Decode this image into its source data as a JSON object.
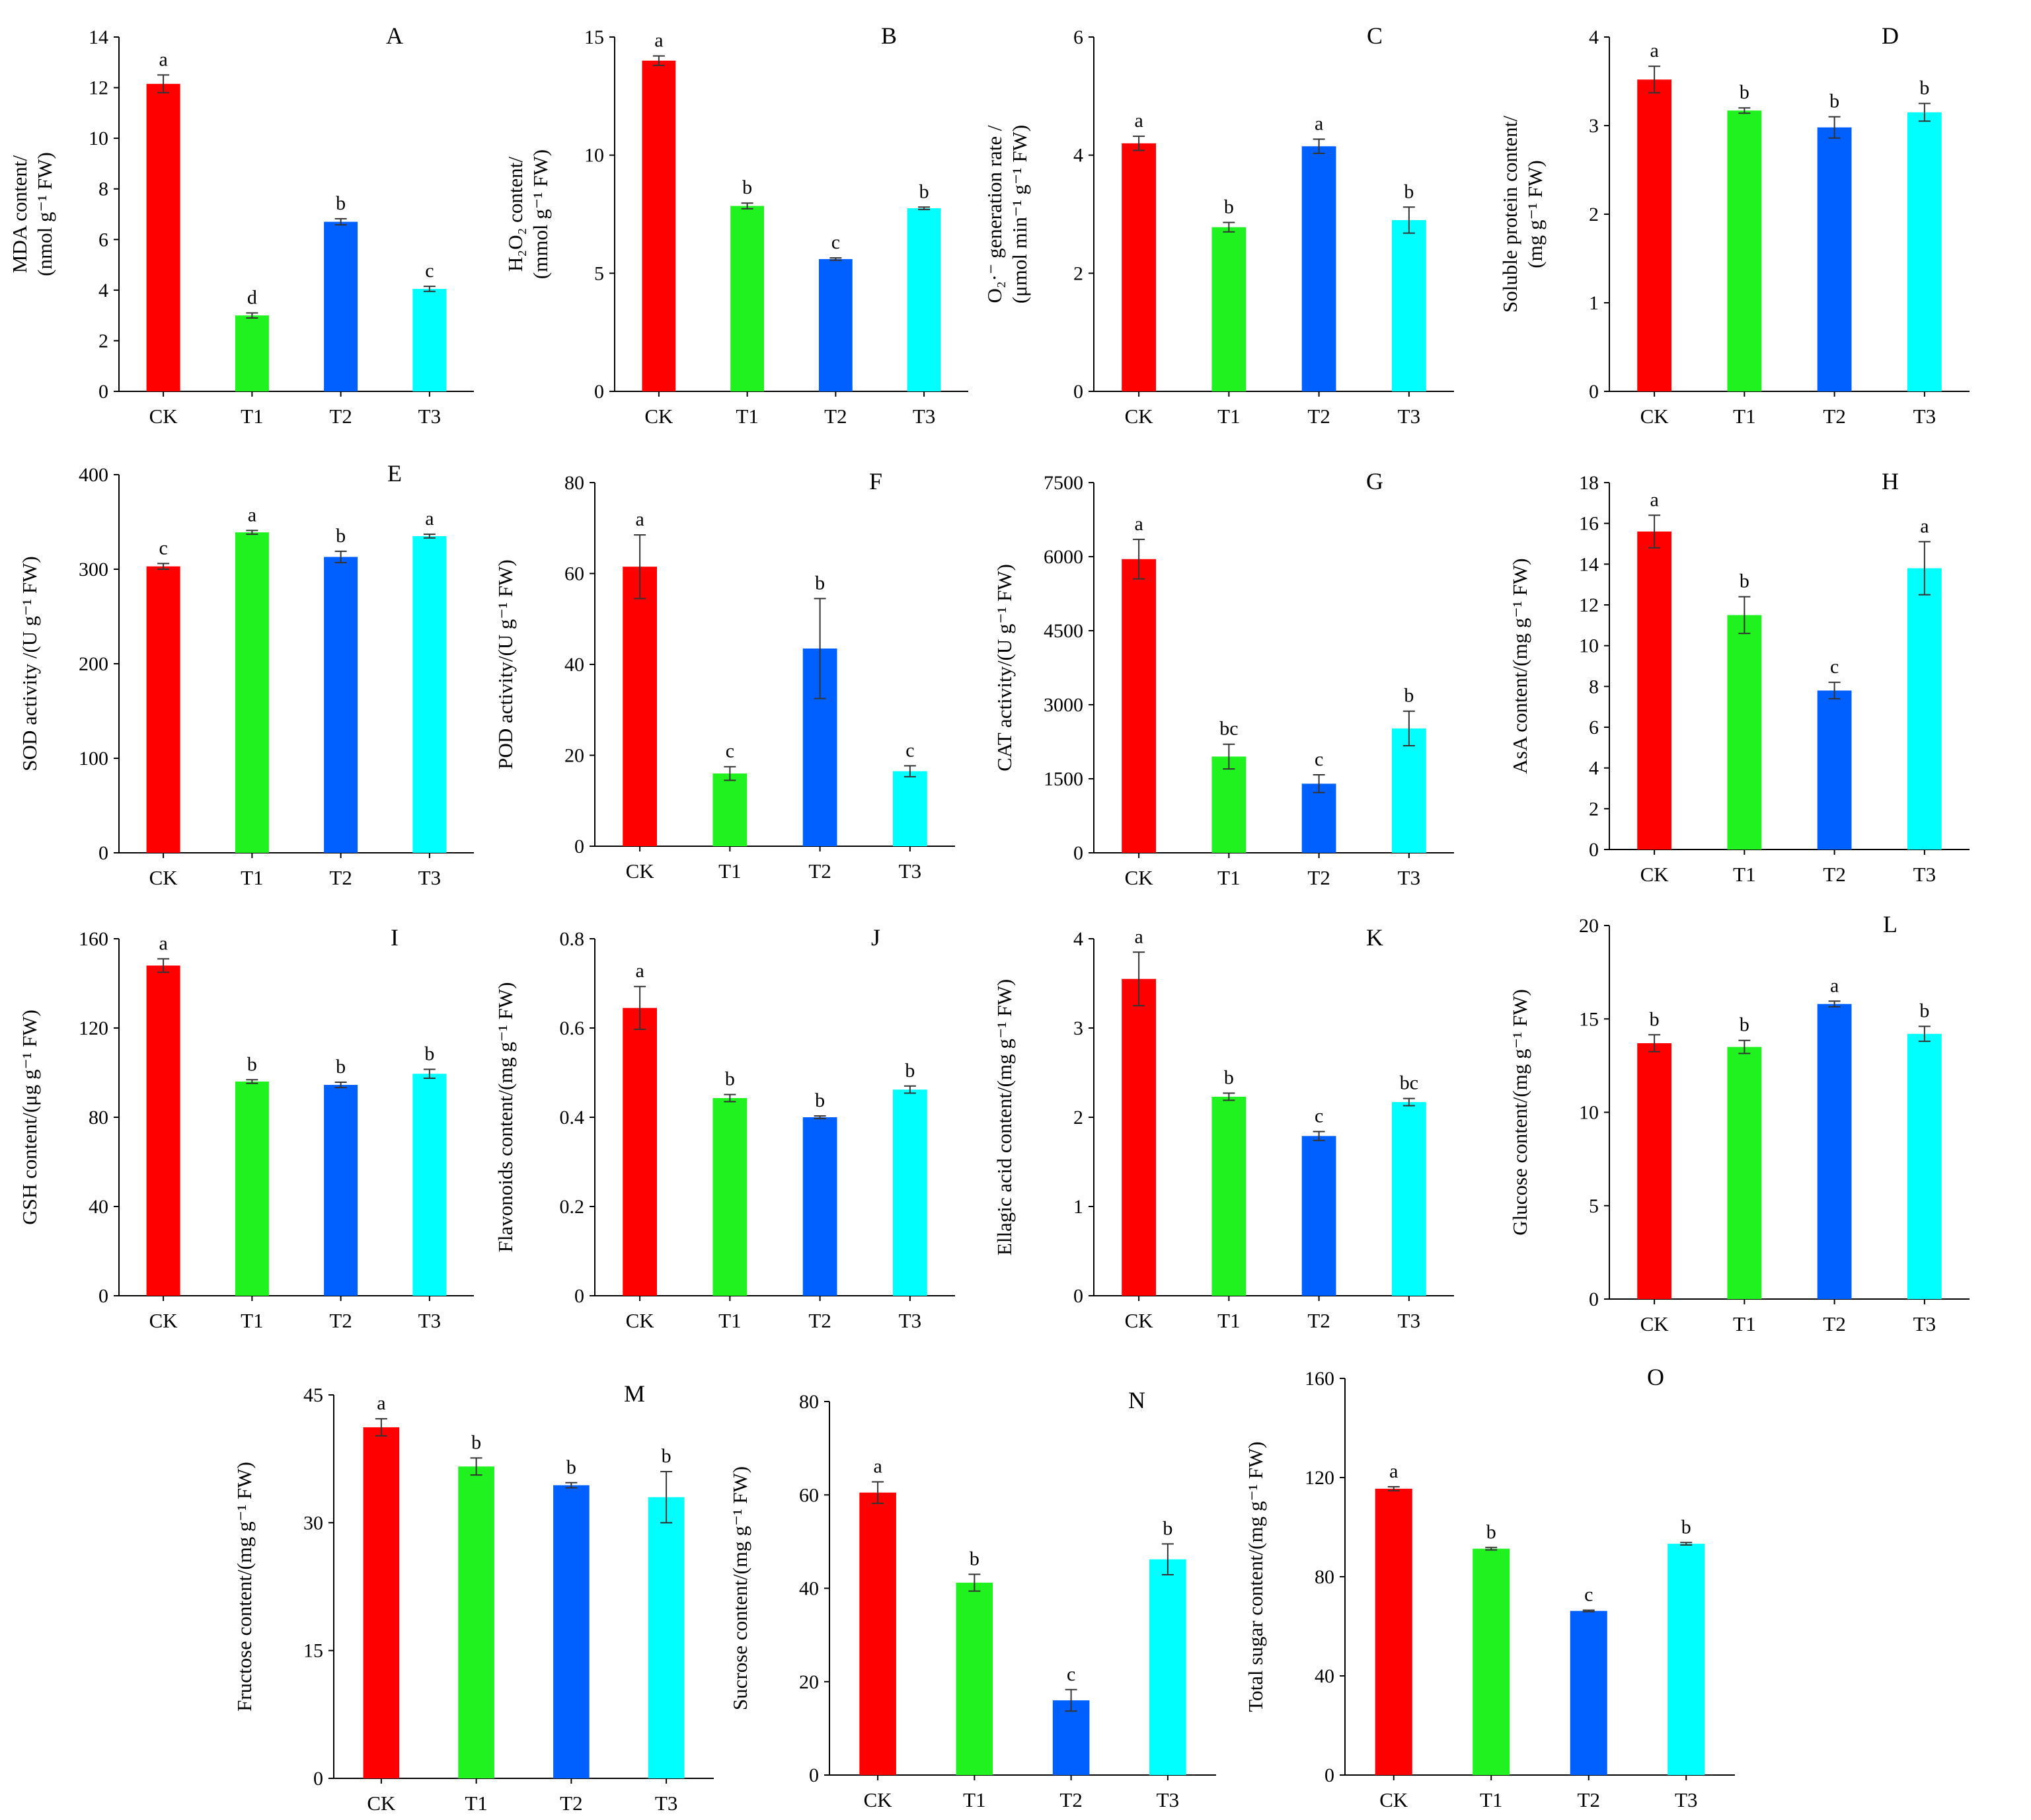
{
  "colors": {
    "CK": "#ff0000",
    "T1": "#1ff21f",
    "T2": "#0060ff",
    "T3": "#00ffff",
    "error_bar": "#333333",
    "axis": "#000000"
  },
  "chart_data": [
    {
      "type": "bar",
      "label": "A",
      "title": "MDA content",
      "ylabel_lines": [
        "MDA content/",
        "(nmol g⁻¹ FW)"
      ],
      "categories": [
        "CK",
        "T1",
        "T2",
        "T3"
      ],
      "values": [
        12.15,
        3.0,
        6.7,
        4.05
      ],
      "errors": [
        0.35,
        0.1,
        0.12,
        0.1
      ],
      "significance": [
        "a",
        "d",
        "b",
        "c"
      ],
      "yticks": [
        0,
        2,
        4,
        6,
        8,
        10,
        12,
        14
      ],
      "ylim": [
        0,
        14
      ]
    },
    {
      "type": "bar",
      "label": "B",
      "title": "H2O2 content",
      "ylabel_lines": [
        "H₂O₂ content/",
        "(mmol g⁻¹ FW)"
      ],
      "categories": [
        "CK",
        "T1",
        "T2",
        "T3"
      ],
      "values": [
        14.0,
        7.85,
        5.6,
        7.75
      ],
      "errors": [
        0.2,
        0.12,
        0.05,
        0.05
      ],
      "significance": [
        "a",
        "b",
        "c",
        "b"
      ],
      "yticks": [
        0,
        5,
        10,
        15
      ],
      "ylim": [
        0,
        15
      ]
    },
    {
      "type": "bar",
      "label": "C",
      "title": "O2- generation rate",
      "ylabel_lines": [
        "O₂·⁻ generation rate /",
        "(μmol min⁻¹ g⁻¹ FW)"
      ],
      "categories": [
        "CK",
        "T1",
        "T2",
        "T3"
      ],
      "values": [
        4.2,
        2.78,
        4.15,
        2.9
      ],
      "errors": [
        0.12,
        0.08,
        0.12,
        0.22
      ],
      "significance": [
        "a",
        "b",
        "a",
        "b"
      ],
      "yticks": [
        0,
        2,
        4,
        6
      ],
      "ylim": [
        0,
        6
      ]
    },
    {
      "type": "bar",
      "label": "D",
      "title": "Soluble protein content",
      "ylabel_lines": [
        "Soluble protein content/",
        "(mg g⁻¹ FW)"
      ],
      "categories": [
        "CK",
        "T1",
        "T2",
        "T3"
      ],
      "values": [
        3.52,
        3.17,
        2.98,
        3.15
      ],
      "errors": [
        0.15,
        0.03,
        0.12,
        0.1
      ],
      "significance": [
        "a",
        "b",
        "b",
        "b"
      ],
      "yticks": [
        0,
        1,
        2,
        3,
        4
      ],
      "ylim": [
        0,
        4
      ]
    },
    {
      "type": "bar",
      "label": "E",
      "title": "SOD activity",
      "ylabel_lines": [
        "SOD activity /(U g⁻¹ FW)"
      ],
      "categories": [
        "CK",
        "T1",
        "T2",
        "T3"
      ],
      "values": [
        303,
        339,
        313,
        335
      ],
      "errors": [
        3,
        2,
        6,
        2
      ],
      "significance": [
        "c",
        "a",
        "b",
        "a"
      ],
      "yticks": [
        0,
        100,
        200,
        300,
        400
      ],
      "ylim": [
        0,
        400
      ]
    },
    {
      "type": "bar",
      "label": "F",
      "title": "POD activity",
      "ylabel_lines": [
        "POD activity/(U g⁻¹ FW)"
      ],
      "categories": [
        "CK",
        "T1",
        "T2",
        "T3"
      ],
      "values": [
        61.5,
        16.0,
        43.5,
        16.5
      ],
      "errors": [
        7.0,
        1.5,
        11.0,
        1.2
      ],
      "significance": [
        "a",
        "c",
        "b",
        "c"
      ],
      "yticks": [
        0,
        20,
        40,
        60,
        80
      ],
      "ylim": [
        0,
        80
      ]
    },
    {
      "type": "bar",
      "label": "G",
      "title": "CAT activity",
      "ylabel_lines": [
        "CAT activity/(U g⁻¹ FW)"
      ],
      "categories": [
        "CK",
        "T1",
        "T2",
        "T3"
      ],
      "values": [
        5950,
        1950,
        1400,
        2520
      ],
      "errors": [
        400,
        250,
        180,
        350
      ],
      "significance": [
        "a",
        "bc",
        "c",
        "b"
      ],
      "yticks": [
        0,
        1500,
        3000,
        4500,
        6000,
        7500
      ],
      "ylim": [
        0,
        7500
      ]
    },
    {
      "type": "bar",
      "label": "H",
      "title": "AsA content",
      "ylabel_lines": [
        "AsA content/(mg g⁻¹ FW)"
      ],
      "categories": [
        "CK",
        "T1",
        "T2",
        "T3"
      ],
      "values": [
        15.6,
        11.5,
        7.8,
        13.8
      ],
      "errors": [
        0.8,
        0.9,
        0.4,
        1.3
      ],
      "significance": [
        "a",
        "b",
        "c",
        "a"
      ],
      "yticks": [
        0,
        2,
        4,
        6,
        8,
        10,
        12,
        14,
        16,
        18
      ],
      "ylim": [
        0,
        18
      ]
    },
    {
      "type": "bar",
      "label": "I",
      "title": "GSH content",
      "ylabel_lines": [
        "GSH content/(μg g⁻¹ FW)"
      ],
      "categories": [
        "CK",
        "T1",
        "T2",
        "T3"
      ],
      "values": [
        148,
        96,
        94.5,
        99.5
      ],
      "errors": [
        3,
        0.8,
        1.2,
        2
      ],
      "significance": [
        "a",
        "b",
        "b",
        "b"
      ],
      "yticks": [
        0,
        40,
        80,
        120,
        160
      ],
      "ylim": [
        0,
        160
      ]
    },
    {
      "type": "bar",
      "label": "J",
      "title": "Flavonoids content",
      "ylabel_lines": [
        "Flavonoids content/(mg g⁻¹ FW)"
      ],
      "categories": [
        "CK",
        "T1",
        "T2",
        "T3"
      ],
      "values": [
        0.645,
        0.443,
        0.4,
        0.462
      ],
      "errors": [
        0.048,
        0.008,
        0.003,
        0.008
      ],
      "significance": [
        "a",
        "b",
        "b",
        "b"
      ],
      "yticks": [
        0,
        0.2,
        0.4,
        0.6,
        0.8
      ],
      "ylim": [
        0,
        0.8
      ]
    },
    {
      "type": "bar",
      "label": "K",
      "title": "Ellagic acid content",
      "ylabel_lines": [
        "Ellagic acid content/(mg g⁻¹ FW)"
      ],
      "categories": [
        "CK",
        "T1",
        "T2",
        "T3"
      ],
      "values": [
        3.55,
        2.23,
        1.79,
        2.17
      ],
      "errors": [
        0.3,
        0.04,
        0.05,
        0.04
      ],
      "significance": [
        "a",
        "b",
        "c",
        "bc"
      ],
      "yticks": [
        0,
        1,
        2,
        3,
        4
      ],
      "ylim": [
        0,
        4
      ]
    },
    {
      "type": "bar",
      "label": "L",
      "title": "Glucose content",
      "ylabel_lines": [
        "Glucose content/(mg g⁻¹ FW)"
      ],
      "categories": [
        "CK",
        "T1",
        "T2",
        "T3"
      ],
      "values": [
        13.7,
        13.5,
        15.8,
        14.2
      ],
      "errors": [
        0.45,
        0.35,
        0.15,
        0.4
      ],
      "significance": [
        "b",
        "b",
        "a",
        "b"
      ],
      "yticks": [
        0,
        5,
        10,
        15,
        20
      ],
      "ylim": [
        0,
        20
      ]
    },
    {
      "type": "bar",
      "label": "M",
      "title": "Fructose content",
      "ylabel_lines": [
        "Fructose content/(mg g⁻¹ FW)"
      ],
      "categories": [
        "CK",
        "T1",
        "T2",
        "T3"
      ],
      "values": [
        41.2,
        36.6,
        34.4,
        33.0
      ],
      "errors": [
        1.0,
        1.0,
        0.3,
        3.0
      ],
      "significance": [
        "a",
        "b",
        "b",
        "b"
      ],
      "yticks": [
        0,
        15,
        30,
        45
      ],
      "ylim": [
        0,
        45
      ]
    },
    {
      "type": "bar",
      "label": "N",
      "title": "Sucrose content",
      "ylabel_lines": [
        "Sucrose content/(mg g⁻¹ FW)"
      ],
      "categories": [
        "CK",
        "T1",
        "T2",
        "T3"
      ],
      "values": [
        60.5,
        41.2,
        16.0,
        46.2
      ],
      "errors": [
        2.3,
        1.8,
        2.3,
        3.3
      ],
      "significance": [
        "a",
        "b",
        "c",
        "b"
      ],
      "yticks": [
        0,
        20,
        40,
        60,
        80
      ],
      "ylim": [
        0,
        80
      ]
    },
    {
      "type": "bar",
      "label": "O",
      "title": "Total sugar content",
      "ylabel_lines": [
        "Total sugar content/(mg g⁻¹ FW)"
      ],
      "categories": [
        "CK",
        "T1",
        "T2",
        "T3"
      ],
      "values": [
        115.5,
        91.3,
        66.2,
        93.3
      ],
      "errors": [
        0.8,
        0.5,
        0.3,
        0.5
      ],
      "significance": [
        "a",
        "b",
        "c",
        "b"
      ],
      "yticks": [
        0,
        40,
        80,
        120,
        160
      ],
      "ylim": [
        0,
        160
      ]
    }
  ]
}
